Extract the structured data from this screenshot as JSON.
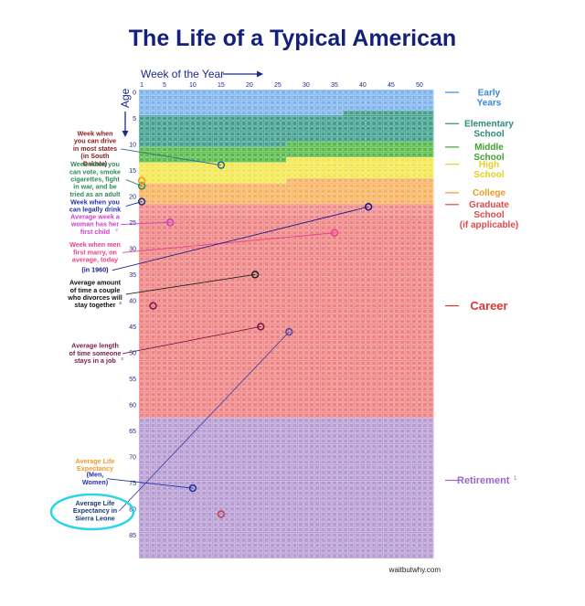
{
  "title": "The Life of a Typical American",
  "x_axis": {
    "label": "Week of the Year",
    "arrow": "arrow-right-icon",
    "ticks": [
      "1",
      "5",
      "10",
      "15",
      "20",
      "25",
      "30",
      "35",
      "40",
      "45",
      "50"
    ],
    "tick_weeks": [
      1,
      5,
      10,
      15,
      20,
      25,
      30,
      35,
      40,
      45,
      50
    ],
    "weeks_per_year": 52
  },
  "y_axis": {
    "label": "Age",
    "arrow": "arrow-down-icon",
    "ticks": [
      "0",
      "5",
      "10",
      "15",
      "20",
      "25",
      "30",
      "35",
      "40",
      "45",
      "50",
      "55",
      "60",
      "65",
      "70",
      "75",
      "80",
      "85"
    ],
    "tick_years": [
      0,
      5,
      10,
      15,
      20,
      25,
      30,
      35,
      40,
      45,
      50,
      55,
      60,
      65,
      70,
      75,
      80,
      85
    ],
    "total_years": 90
  },
  "stages": [
    {
      "label": "Early Years",
      "color": "#7eb3ec",
      "label_color": "#3a86d8",
      "from_year": 0,
      "from_week": 1,
      "to_year": 4,
      "to_week": 36,
      "label_year": 1.5
    },
    {
      "label": "Elementary School",
      "color": "#3f9e8c",
      "label_color": "#2e8a79",
      "from_year": 4,
      "from_week": 37,
      "to_year": 10,
      "to_week": 26,
      "label_year": 7.5
    },
    {
      "label": "Middle School",
      "color": "#57b947",
      "label_color": "#3fa22e",
      "from_year": 10,
      "from_week": 27,
      "to_year": 13,
      "to_week": 26,
      "label_year": 12
    },
    {
      "label": "High School",
      "color": "#f3e74e",
      "label_color": "#e6cf1a",
      "from_year": 13,
      "from_week": 27,
      "to_year": 17,
      "to_week": 26,
      "label_year": 15.3
    },
    {
      "label": "College",
      "color": "#f6b35f",
      "label_color": "#ef9a2a",
      "from_year": 17,
      "from_week": 27,
      "to_year": 21,
      "to_week": 52,
      "label_year": 19.8
    },
    {
      "label": "Graduate School (if applicable)",
      "color": "#f08a8a",
      "label_color": "#e04a4a",
      "from_year": 22,
      "from_week": 1,
      "to_year": 23,
      "to_week": 52,
      "label_year": 24
    },
    {
      "label": "Career",
      "color": "#ee8282",
      "label_color": "#e03434",
      "from_year": 24,
      "from_week": 1,
      "to_year": 62,
      "to_week": 52,
      "label_year": 41.5
    },
    {
      "label": "Retirement",
      "color": "#b59bd1",
      "label_color": "#9a63c9",
      "from_year": 63,
      "from_week": 1,
      "to_year": 89,
      "to_week": 52,
      "label_year": 75,
      "footnote": "1"
    }
  ],
  "stage_label_lines": [
    [
      "Early",
      "Years"
    ],
    [
      "Elementary",
      "School"
    ],
    [
      "Middle",
      "School"
    ],
    [
      "High",
      "School"
    ],
    [
      "College"
    ],
    [
      "Graduate",
      "School",
      "(if applicable)"
    ],
    [
      "Career"
    ],
    [
      "Retirement"
    ]
  ],
  "annotations": [
    {
      "lines": [
        "Week when",
        "you can drive",
        "in most states",
        "(in South",
        "Dakota)"
      ],
      "color": "#8b1a1a",
      "label_year": 11.3,
      "marker": {
        "year": 14,
        "week": 15
      },
      "marker_color": "#2a6f8a"
    },
    {
      "lines": [
        "Week when you",
        "can vote, smoke",
        "cigarettes, fight",
        "in war, and be",
        "tried as an adult"
      ],
      "color": "#2e8b57",
      "label_year": 17.2,
      "marker": {
        "year": 18,
        "week": 1
      },
      "marker_color": "#2e8b57"
    },
    {
      "lines": [
        "Week when you",
        "can legally drink"
      ],
      "color": "#2233aa",
      "label_year": 22.3,
      "marker": {
        "year": 21,
        "week": 1
      },
      "marker_color": "#2233aa"
    },
    {
      "lines": [
        "Average week a",
        "woman has her",
        "first child"
      ],
      "footnote": "2",
      "color": "#cc3fc8",
      "label_year": 25.8,
      "marker": {
        "year": 25,
        "week": 6
      },
      "marker_color": "#cc3fc8"
    },
    {
      "lines": [
        "Week when men",
        "first marry, on",
        "average, today"
      ],
      "color": "#ec3f8c",
      "label_year": 31.2,
      "marker": {
        "year": 27,
        "week": 35
      },
      "marker_color": "#ec3f8c"
    },
    {
      "lines": [
        "(in 1960)"
      ],
      "color": "#1a1a8c",
      "label_year": 34.6,
      "marker": {
        "year": 22,
        "week": 41
      },
      "marker_color": "#1a1a8c"
    },
    {
      "lines": [
        "Average amount",
        "of time a couple",
        "who divorces will",
        "stay together"
      ],
      "footnote": "4",
      "color": "#111111",
      "label_year": 39.2,
      "marker": {
        "year": 35,
        "week": 21
      },
      "marker_color": "#222222"
    },
    {
      "lines": [
        "Average length",
        "of time someone",
        "stays in a job"
      ],
      "footnote": "3",
      "color": "#7a1a4a",
      "label_year": 50.6,
      "marker": {
        "year": 45,
        "week": 22
      },
      "marker_color": "#7a1a4a"
    },
    {
      "lines": [
        "Average Life",
        "Expectancy"
      ],
      "color": "#f09a2a",
      "label_year": 72,
      "marker": null,
      "marker_color": "#f09a2a"
    },
    {
      "lines": [
        "(Men,",
        "Women)"
      ],
      "color": "#2233aa",
      "label_year": 74.6,
      "marker": {
        "year": 76,
        "week": 10
      },
      "marker_color": "#2233aa"
    },
    {
      "lines": [
        "Average Life",
        "Expectancy in",
        "Sierra Leone"
      ],
      "color": "#1a3a7a",
      "label_year": 80.8,
      "marker": {
        "year": 46,
        "week": 27
      },
      "marker_color": "#4a4aaa",
      "highlight": true
    }
  ],
  "extra_markers": [
    {
      "year": 17,
      "week": 1,
      "color": "#ef9a2a"
    },
    {
      "year": 41,
      "week": 3,
      "color": "#7a1a4a"
    },
    {
      "year": 81,
      "week": 15,
      "color": "#cc3a55"
    }
  ],
  "watermark": "waitbutwhy.com"
}
